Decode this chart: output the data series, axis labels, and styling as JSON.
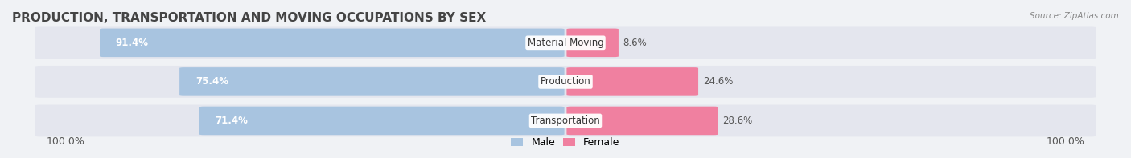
{
  "title": "PRODUCTION, TRANSPORTATION AND MOVING OCCUPATIONS BY SEX",
  "source": "Source: ZipAtlas.com",
  "categories": [
    "Material Moving",
    "Production",
    "Transportation"
  ],
  "male_values": [
    91.4,
    75.4,
    71.4
  ],
  "female_values": [
    8.6,
    24.6,
    28.6
  ],
  "male_color": "#a8c4e0",
  "female_color": "#f080a0",
  "male_label": "Male",
  "female_label": "Female",
  "bg_color": "#f0f0f0",
  "bar_bg_color": "#e8e8ee",
  "left_label": "100.0%",
  "right_label": "100.0%",
  "title_fontsize": 11,
  "label_fontsize": 9,
  "bar_label_fontsize": 8.5,
  "cat_fontsize": 8.5
}
